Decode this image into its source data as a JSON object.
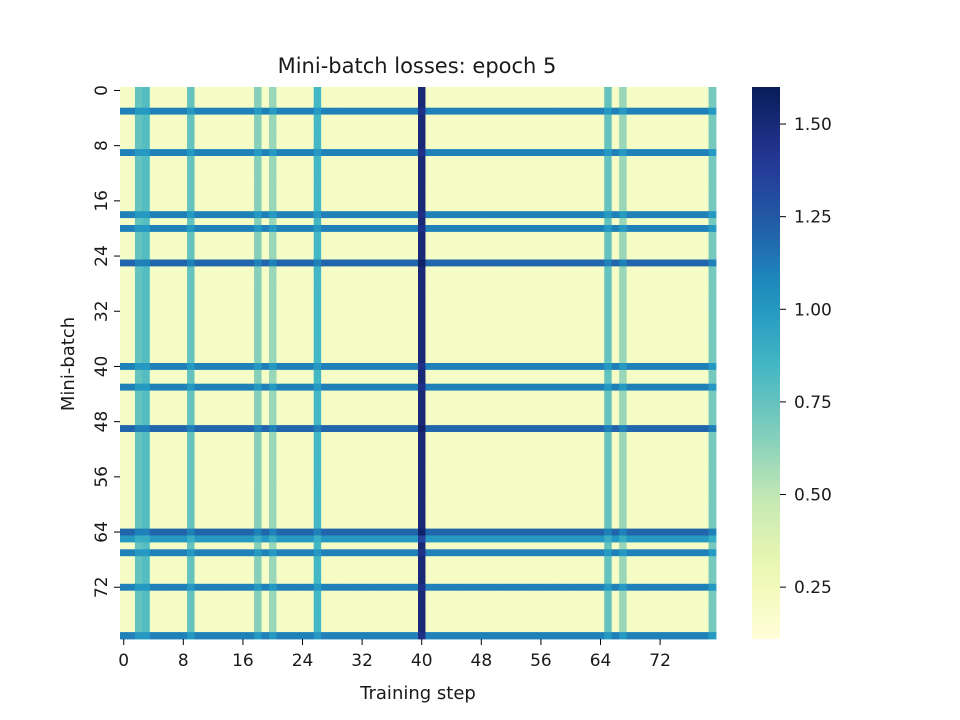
{
  "chart_data": {
    "type": "heatmap",
    "title": "Mini-batch losses: epoch 5",
    "xlabel": "Training step",
    "ylabel": "Mini-batch",
    "n_rows": 80,
    "n_cols": 80,
    "xtick_labels": [
      "0",
      "8",
      "16",
      "24",
      "32",
      "40",
      "48",
      "56",
      "64",
      "72"
    ],
    "ytick_labels": [
      "0",
      "8",
      "16",
      "24",
      "32",
      "40",
      "48",
      "56",
      "64",
      "72"
    ],
    "colorbar": {
      "vmin": 0.11,
      "vmax": 1.6,
      "tick_values": [
        0.25,
        0.5,
        0.75,
        1.0,
        1.25,
        1.5
      ],
      "tick_labels": [
        "0.25",
        "0.50",
        "0.75",
        "1.00",
        "1.25",
        "1.50"
      ]
    },
    "colormap": "YlGnBu",
    "background_loss": 0.2,
    "high_loss_rows": {
      "3": 1.1,
      "9": 1.1,
      "18": 1.1,
      "20": 1.1,
      "25": 1.2,
      "40": 1.1,
      "43": 1.1,
      "49": 1.2,
      "64": 1.2,
      "65": 1.0,
      "67": 1.1,
      "72": 1.1,
      "79": 1.1
    },
    "high_loss_cols": {
      "2": 0.75,
      "3": 0.8,
      "9": 0.75,
      "18": 0.65,
      "20": 0.6,
      "26": 0.85,
      "40": 1.5,
      "65": 0.75,
      "67": 0.6,
      "79": 0.7
    },
    "extra_col_loss_at_hot_rows": {
      "40": 0.35
    }
  }
}
